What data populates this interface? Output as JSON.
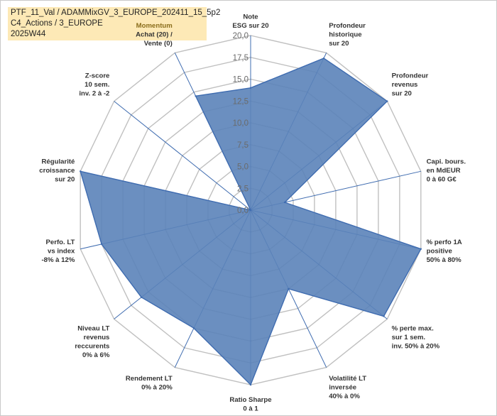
{
  "header": {
    "line1": "PTF_11_Val / ADAMMixGV_3_EUROPE_202411_15_5p2",
    "line2": "C4_Actions / 3_EUROPE",
    "line3": "2025W44"
  },
  "chart_data": {
    "type": "radar",
    "rlim": [
      0,
      20
    ],
    "ticks": [
      "0,0",
      "2,5",
      "5,0",
      "7,5",
      "10,0",
      "12,5",
      "15,0",
      "17,5",
      "20,0"
    ],
    "grid": true,
    "colors": {
      "fill": "#5b83b9",
      "stroke": "#3f6cb0",
      "grid": "#c0c0c0",
      "highlight": "#fde9b6"
    },
    "axes": [
      {
        "label": [
          "Note",
          "ESG sur 20"
        ],
        "value": 14.0
      },
      {
        "label": [
          "Profondeur",
          "historique",
          "sur 20"
        ],
        "value": 19.3
      },
      {
        "label": [
          "Profondeur",
          "revenus",
          "sur 20"
        ],
        "value": 20.0
      },
      {
        "label": [
          "Capi. bours.",
          "en MdEUR",
          "0 à 60 G€"
        ],
        "value": 4.0
      },
      {
        "label": [
          "% perfo 1A",
          "positive",
          "50% à 80%"
        ],
        "value": 20.0
      },
      {
        "label": [
          "% perte max.",
          "sur 1 sem.",
          "inv. 50% à 20%"
        ],
        "value": 19.5
      },
      {
        "label": [
          "Volatilité LT",
          "inversée",
          "40% à 0%"
        ],
        "value": 10.0
      },
      {
        "label": [
          "Ratio Sharpe",
          "0 à 1"
        ],
        "value": 20.0
      },
      {
        "label": [
          "Rendement LT",
          "0% à 20%"
        ],
        "value": 15.0
      },
      {
        "label": [
          "Niveau LT",
          "revenus",
          "reccurents",
          "0% à 6%"
        ],
        "value": 16.0
      },
      {
        "label": [
          "Perfo. LT",
          "vs index",
          "-8% à 12%"
        ],
        "value": 17.5
      },
      {
        "label": [
          "Régularité",
          "croissance",
          "sur 20"
        ],
        "value": 20.0
      },
      {
        "label": [
          "Z-score",
          "10 sem.",
          "inv. 2 à -2"
        ],
        "value": 0.0
      },
      {
        "label": [
          "Momentum",
          "Achat (20) /",
          "Vente (0)"
        ],
        "value": 14.5,
        "highlight_first_line": true
      }
    ]
  }
}
